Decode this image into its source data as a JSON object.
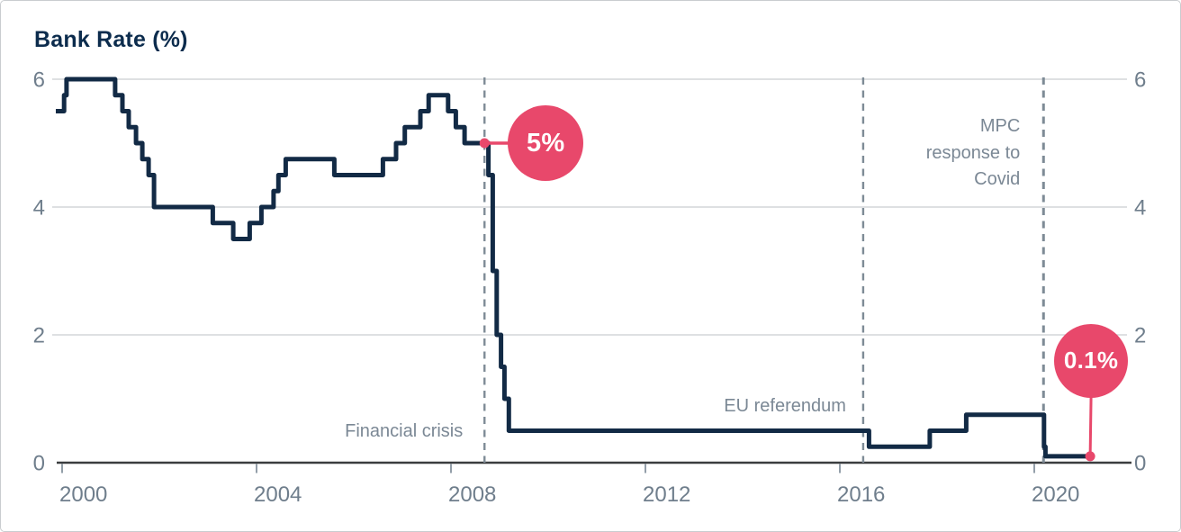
{
  "header": {
    "title": "Bank Rate (%)"
  },
  "colors": {
    "line_navy": "#122a45",
    "accent_pink": "#e8486b",
    "title_navy": "#0c2c4d",
    "label_gray": "#6f7e8c",
    "annotation_gray": "#7b8895",
    "dashed_gray": "#7e8b96",
    "gridline_gray": "#c9cdd0",
    "axis_dark": "#3a3d3f",
    "badge_text": "#ffffff"
  },
  "chart_data": {
    "type": "line",
    "style": "step",
    "title": "Bank Rate (%)",
    "xlabel": "",
    "ylabel": "Bank Rate (%)",
    "x_unit": "year",
    "y_unit": "percent",
    "xlim": [
      1999.87,
      2021.6
    ],
    "ylim": [
      0,
      6
    ],
    "yticks": [
      0,
      2,
      4,
      6
    ],
    "xticks": [
      2000,
      2004,
      2008,
      2012,
      2016,
      2020
    ],
    "grid": "horizontal",
    "legend": "none",
    "series": [
      {
        "name": "Bank Rate",
        "end_year": 2021.15,
        "step_points": [
          [
            1999.87,
            5.5
          ],
          [
            2000.04,
            5.75
          ],
          [
            2000.09,
            6.0
          ],
          [
            2001.09,
            5.75
          ],
          [
            2001.24,
            5.5
          ],
          [
            2001.37,
            5.25
          ],
          [
            2001.52,
            5.0
          ],
          [
            2001.65,
            4.75
          ],
          [
            2001.78,
            4.5
          ],
          [
            2001.89,
            4.0
          ],
          [
            2003.1,
            3.75
          ],
          [
            2003.52,
            3.5
          ],
          [
            2003.86,
            3.75
          ],
          [
            2004.1,
            4.0
          ],
          [
            2004.35,
            4.25
          ],
          [
            2004.45,
            4.5
          ],
          [
            2004.6,
            4.75
          ],
          [
            2005.6,
            4.5
          ],
          [
            2006.6,
            4.75
          ],
          [
            2006.87,
            5.0
          ],
          [
            2007.05,
            5.25
          ],
          [
            2007.37,
            5.5
          ],
          [
            2007.54,
            5.75
          ],
          [
            2007.94,
            5.5
          ],
          [
            2008.1,
            5.25
          ],
          [
            2008.28,
            5.0
          ],
          [
            2008.77,
            4.5
          ],
          [
            2008.86,
            3.0
          ],
          [
            2008.94,
            2.0
          ],
          [
            2009.03,
            1.5
          ],
          [
            2009.1,
            1.0
          ],
          [
            2009.19,
            0.5
          ],
          [
            2016.6,
            0.25
          ],
          [
            2017.85,
            0.5
          ],
          [
            2018.6,
            0.75
          ],
          [
            2020.2,
            0.25
          ],
          [
            2020.23,
            0.1
          ]
        ]
      }
    ],
    "annotations": [
      {
        "id": "financial_crisis",
        "text": "Financial crisis",
        "year": 2008.69
      },
      {
        "id": "eu_referendum",
        "text": "EU referendum",
        "year": 2016.48
      },
      {
        "id": "covid",
        "text": "MPC\nresponse to\nCovid",
        "year": 2020.19
      }
    ],
    "callouts": [
      {
        "id": "rate_2008",
        "label": "5%",
        "year": 2008.69,
        "value": 5.0,
        "placement": "right"
      },
      {
        "id": "rate_2021",
        "label": "0.1%",
        "year": 2021.15,
        "value": 0.1,
        "placement": "above"
      }
    ]
  }
}
